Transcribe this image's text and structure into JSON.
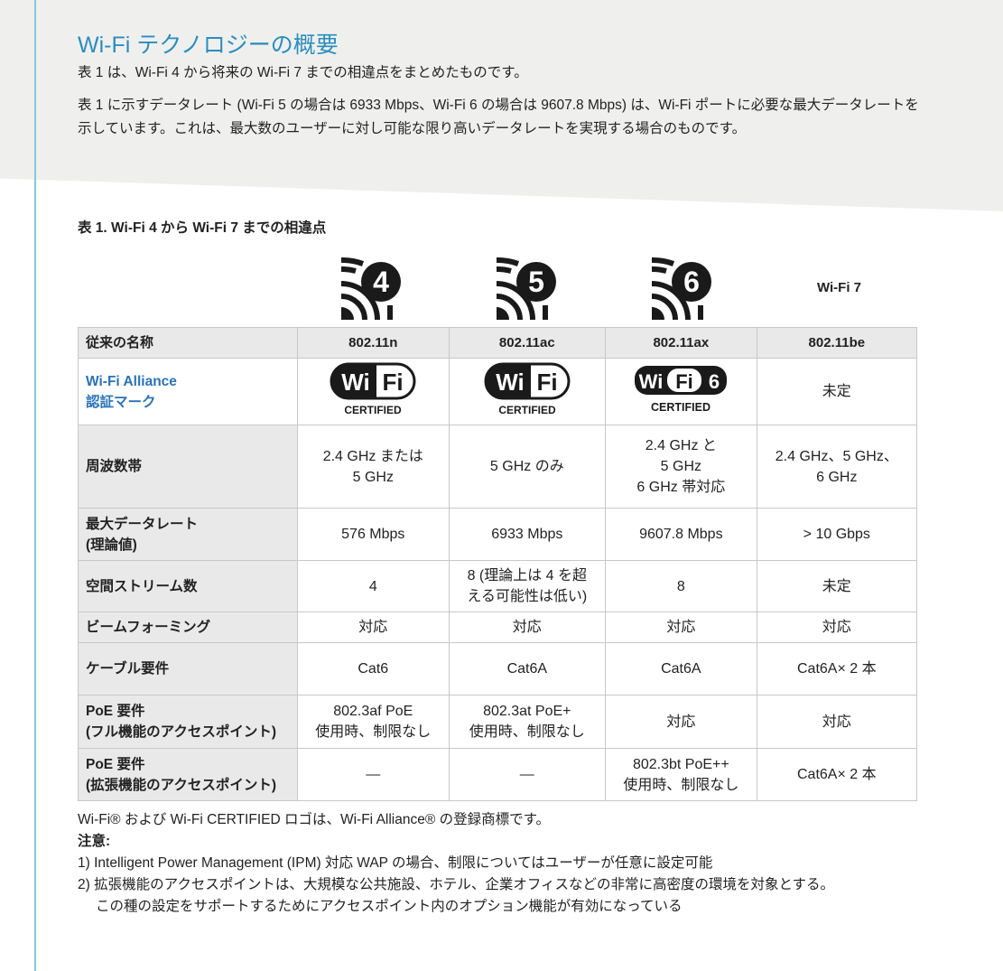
{
  "title": "Wi-Fi テクノロジーの概要",
  "para1": "表 1 は、Wi-Fi 4 から将来の Wi-Fi 7 までの相違点をまとめたものです。",
  "para2": "表 1 に示すデータレート (Wi-Fi 5 の場合は 6933 Mbps、Wi-Fi 6 の場合は 9607.8 Mbps) は、Wi-Fi ポートに必要な最大データレートを示しています。これは、最大数のユーザーに対し可能な限り高いデータレートを実現する場合のものです。",
  "caption": "表 1. Wi-Fi 4 から Wi-Fi 7 までの相違点",
  "generation_logos": [
    {
      "number": "4"
    },
    {
      "number": "5"
    },
    {
      "number": "6"
    }
  ],
  "wifi7_label": "Wi-Fi 7",
  "certified_logos": {
    "wifi": "Wi Fi",
    "six": "6",
    "certified": "CERTIFIED"
  },
  "table": {
    "header": {
      "label": "従来の名称",
      "cols": [
        "802.11n",
        "802.11ac",
        "802.11ax",
        "802.11be"
      ]
    },
    "cert_row": {
      "label1": "Wi-Fi Alliance",
      "label2": "認証マーク",
      "wifi7": "未定"
    },
    "rows": [
      {
        "label": "周波数帯",
        "cells": [
          "2.4 GHz または\n5 GHz",
          "5 GHz のみ",
          "2.4 GHz と\n5 GHz\n6 GHz 帯対応",
          "2.4 GHz、5 GHz、\n6 GHz"
        ]
      },
      {
        "label": "最大データレート\n(理論値)",
        "cells": [
          "576 Mbps",
          "6933 Mbps",
          "9607.8 Mbps",
          "> 10 Gbps"
        ]
      },
      {
        "label": "空間ストリーム数",
        "cells": [
          "4",
          "8 (理論上は 4 を超\nえる可能性は低い)",
          "8",
          "未定"
        ]
      },
      {
        "label": "ビームフォーミング",
        "cells": [
          "対応",
          "対応",
          "対応",
          "対応"
        ]
      },
      {
        "label": "ケーブル要件",
        "cells": [
          "Cat6",
          "Cat6A",
          "Cat6A",
          "Cat6A× 2 本"
        ]
      },
      {
        "label": "PoE 要件\n(フル機能のアクセスポイント)",
        "cells": [
          "802.3af PoE\n使用時、制限なし",
          "802.3at PoE+\n使用時、制限なし",
          "対応",
          "対応"
        ]
      },
      {
        "label": "PoE 要件\n(拡張機能のアクセスポイント)",
        "cells": [
          "—",
          "—",
          "802.3bt PoE++\n使用時、制限なし",
          "Cat6A× 2 本"
        ]
      }
    ]
  },
  "footer": {
    "trademark": "Wi-Fi® および Wi-Fi CERTIFIED ロゴは、Wi-Fi Alliance® の登録商標です。",
    "notes_label": "注意:",
    "note1": "1) Intelligent Power Management (IPM) 対応 WAP の場合、制限についてはユーザーが任意に設定可能",
    "note2a": "2) 拡張機能のアクセスポイントは、大規模な公共施設、ホテル、企業オフィスなどの非常に高密度の環境を対象とする。",
    "note2b": "この種の設定をサポートするためにアクセスポイント内のオプション機能が有効になっている"
  },
  "colors": {
    "title": "#2a8dbf",
    "label_blue": "#2a73b8",
    "header_bg": "#e8e9e8",
    "top_bg": "#eff0ee"
  }
}
